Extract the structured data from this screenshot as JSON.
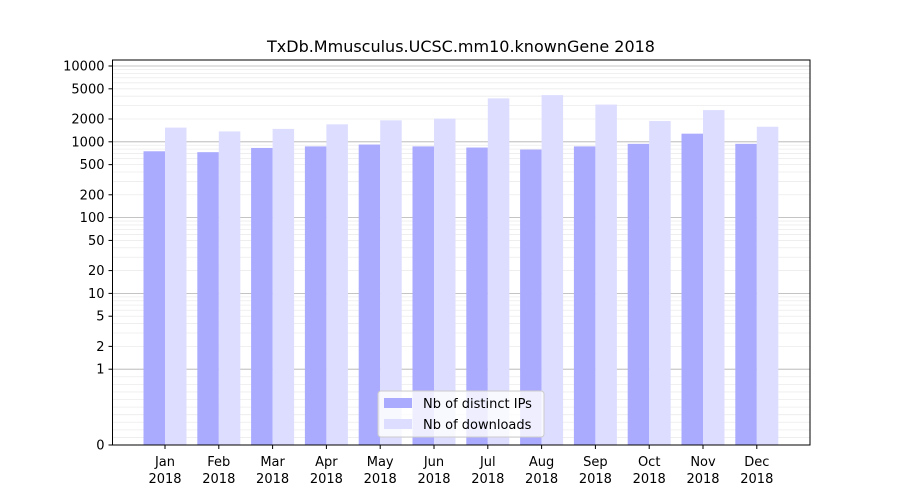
{
  "chart_data": {
    "type": "bar",
    "title": "TxDb.Mmusculus.UCSC.mm10.knownGene 2018",
    "xlabel": "",
    "ylabel": "",
    "yscale": "symlog",
    "ylim": [
      0,
      12000
    ],
    "yticks": [
      0,
      1,
      2,
      5,
      10,
      20,
      50,
      100,
      200,
      500,
      1000,
      2000,
      5000,
      10000
    ],
    "ytick_labels": [
      "0",
      "1",
      "2",
      "5",
      "10",
      "20",
      "50",
      "100",
      "200",
      "500",
      "1000",
      "2000",
      "5000",
      "10000"
    ],
    "grid": true,
    "categories": [
      {
        "month": "Jan",
        "year": "2018"
      },
      {
        "month": "Feb",
        "year": "2018"
      },
      {
        "month": "Mar",
        "year": "2018"
      },
      {
        "month": "Apr",
        "year": "2018"
      },
      {
        "month": "May",
        "year": "2018"
      },
      {
        "month": "Jun",
        "year": "2018"
      },
      {
        "month": "Jul",
        "year": "2018"
      },
      {
        "month": "Aug",
        "year": "2018"
      },
      {
        "month": "Sep",
        "year": "2018"
      },
      {
        "month": "Oct",
        "year": "2018"
      },
      {
        "month": "Nov",
        "year": "2018"
      },
      {
        "month": "Dec",
        "year": "2018"
      }
    ],
    "series": [
      {
        "name": "Nb of distinct IPs",
        "color": "#aaaaff",
        "values": [
          750,
          730,
          830,
          870,
          920,
          870,
          840,
          790,
          870,
          940,
          1280,
          940
        ]
      },
      {
        "name": "Nb of downloads",
        "color": "#ddddff",
        "values": [
          1540,
          1370,
          1480,
          1700,
          1920,
          2020,
          3740,
          4130,
          3100,
          1880,
          2620,
          1580
        ]
      }
    ],
    "legend_position": "lower-center"
  }
}
